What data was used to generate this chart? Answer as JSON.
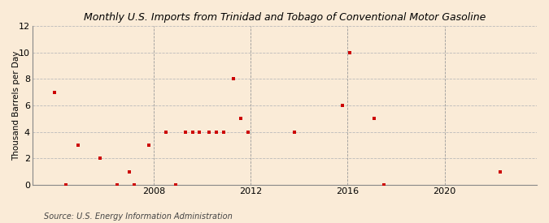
{
  "title": "Monthly U.S. Imports from Trinidad and Tobago of Conventional Motor Gasoline",
  "ylabel": "Thousand Barrels per Day",
  "source": "Source: U.S. Energy Information Administration",
  "background_color": "#faebd7",
  "plot_background_color": "#faebd7",
  "marker_color": "#cc0000",
  "marker": "s",
  "marker_size": 3.5,
  "xlim": [
    2003.0,
    2023.8
  ],
  "ylim": [
    0,
    12
  ],
  "yticks": [
    0,
    2,
    4,
    6,
    8,
    10,
    12
  ],
  "xticks": [
    2008,
    2012,
    2016,
    2020
  ],
  "vgrid_xticks": [
    2008,
    2012,
    2016,
    2020
  ],
  "hgrid_color": "#bbbbbb",
  "vgrid_color": "#999999",
  "hgrid_style": "--",
  "vgrid_style": "--",
  "data_x": [
    2003.9,
    2004.4,
    2004.9,
    2005.8,
    2006.5,
    2007.0,
    2007.2,
    2007.8,
    2008.5,
    2008.9,
    2009.3,
    2009.6,
    2009.9,
    2010.3,
    2010.6,
    2010.9,
    2011.3,
    2011.6,
    2011.9,
    2013.8,
    2015.8,
    2016.1,
    2017.1,
    2017.5,
    2022.3
  ],
  "data_y": [
    7,
    0,
    3,
    2,
    0,
    1,
    0,
    3,
    4,
    0,
    4,
    4,
    4,
    4,
    4,
    4,
    8,
    5,
    4,
    4,
    6,
    10,
    5,
    0,
    1
  ],
  "title_fontsize": 9,
  "axis_fontsize": 8,
  "ylabel_fontsize": 7.5,
  "source_fontsize": 7
}
